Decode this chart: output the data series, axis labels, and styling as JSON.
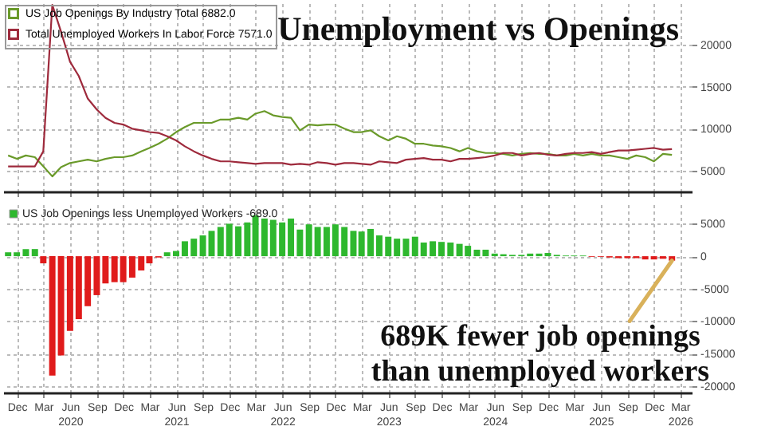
{
  "chart_data": [
    {
      "type": "line",
      "title": "Unemployment vs Openings",
      "x": [
        "2019-11",
        "2019-12",
        "2020-01",
        "2020-02",
        "2020-03",
        "2020-04",
        "2020-05",
        "2020-06",
        "2020-07",
        "2020-08",
        "2020-09",
        "2020-10",
        "2020-11",
        "2020-12",
        "2021-01",
        "2021-02",
        "2021-03",
        "2021-04",
        "2021-05",
        "2021-06",
        "2021-07",
        "2021-08",
        "2021-09",
        "2021-10",
        "2021-11",
        "2021-12",
        "2022-01",
        "2022-02",
        "2022-03",
        "2022-04",
        "2022-05",
        "2022-06",
        "2022-07",
        "2022-08",
        "2022-09",
        "2022-10",
        "2022-11",
        "2022-12",
        "2023-01",
        "2023-02",
        "2023-03",
        "2023-04",
        "2023-05",
        "2023-06",
        "2023-07",
        "2023-08",
        "2023-09",
        "2023-10",
        "2023-11",
        "2023-12",
        "2024-01",
        "2024-02",
        "2024-03",
        "2024-04",
        "2024-05",
        "2024-06",
        "2024-07",
        "2024-08",
        "2024-09",
        "2024-10",
        "2024-11",
        "2024-12",
        "2025-01",
        "2025-02",
        "2025-03",
        "2025-04",
        "2025-05",
        "2025-06",
        "2025-07",
        "2025-08",
        "2025-09",
        "2025-10",
        "2025-11",
        "2025-12",
        "2026-01",
        "2026-02"
      ],
      "series": [
        {
          "name": "US Job Openings By Industry Total 6882.0",
          "color": "#6a9a2a",
          "values": [
            6800,
            6400,
            6800,
            6600,
            5500,
            4300,
            5400,
            5900,
            6100,
            6300,
            6100,
            6400,
            6600,
            6600,
            6800,
            7300,
            7700,
            8200,
            8800,
            9600,
            10200,
            10700,
            10700,
            10700,
            11100,
            11100,
            11300,
            11100,
            11800,
            12100,
            11600,
            11400,
            11300,
            9800,
            10500,
            10400,
            10500,
            10500,
            10000,
            9600,
            9600,
            9800,
            9100,
            8600,
            9100,
            8800,
            8200,
            8200,
            8000,
            7900,
            7700,
            7300,
            7700,
            7300,
            7100,
            7100,
            7000,
            6800,
            7000,
            7100,
            7000,
            7000,
            6800,
            6800,
            7000,
            6800,
            7000,
            6800,
            6800,
            6600,
            6400,
            6800,
            6600,
            6100,
            7000,
            6882
          ]
        },
        {
          "name": "Total Unemployed Workers In Labor Force 7571.0",
          "color": "#9e2a3c",
          "values": [
            5500,
            5500,
            5500,
            5500,
            7300,
            24800,
            21600,
            18000,
            16300,
            13600,
            12300,
            11300,
            10700,
            10500,
            10000,
            9800,
            9600,
            9500,
            9100,
            8600,
            7900,
            7300,
            6800,
            6400,
            6100,
            6100,
            6000,
            5900,
            5800,
            5900,
            5900,
            5900,
            5700,
            5800,
            5700,
            6000,
            5900,
            5700,
            5900,
            5900,
            5800,
            5700,
            6100,
            6000,
            5900,
            6300,
            6400,
            6500,
            6300,
            6300,
            6100,
            6400,
            6400,
            6500,
            6600,
            6800,
            7100,
            7100,
            6800,
            7000,
            7100,
            6900,
            6800,
            7000,
            7100,
            7100,
            7200,
            7000,
            7200,
            7400,
            7400,
            7500,
            7600,
            7700,
            7500,
            7571
          ]
        }
      ],
      "xlim": [
        "2019-10-15",
        "2026-04-10"
      ],
      "xticks": [
        {
          "value": "2019-12",
          "label": null
        },
        {
          "value": "2020-03",
          "label": null
        },
        {
          "value": "2020-06",
          "label": null
        },
        {
          "value": "2020-09",
          "label": null
        },
        {
          "value": "2020-12",
          "label": null
        },
        {
          "value": "2021-03",
          "label": null
        },
        {
          "value": "2021-06",
          "label": null
        },
        {
          "value": "2021-09",
          "label": null
        },
        {
          "value": "2021-12",
          "label": null
        },
        {
          "value": "2022-03",
          "label": null
        },
        {
          "value": "2022-06",
          "label": null
        },
        {
          "value": "2022-09",
          "label": null
        },
        {
          "value": "2022-12",
          "label": null
        },
        {
          "value": "2023-03",
          "label": null
        },
        {
          "value": "2023-06",
          "label": null
        },
        {
          "value": "2023-09",
          "label": null
        },
        {
          "value": "2023-12",
          "label": null
        },
        {
          "value": "2024-03",
          "label": null
        },
        {
          "value": "2024-06",
          "label": null
        },
        {
          "value": "2024-09",
          "label": null
        },
        {
          "value": "2024-12",
          "label": null
        },
        {
          "value": "2025-03",
          "label": null
        },
        {
          "value": "2025-06",
          "label": null
        },
        {
          "value": "2025-09",
          "label": null
        },
        {
          "value": "2025-12",
          "label": null
        },
        {
          "value": "2026-03",
          "label": null
        }
      ],
      "ylim": [
        2500,
        25000
      ],
      "yticks": [
        5000,
        10000,
        15000,
        20000
      ],
      "grid": true,
      "legend": "top left",
      "tick_labels": "y"
    },
    {
      "type": "bar",
      "x": [
        "2019-11",
        "2019-12",
        "2020-01",
        "2020-02",
        "2020-03",
        "2020-04",
        "2020-05",
        "2020-06",
        "2020-07",
        "2020-08",
        "2020-09",
        "2020-10",
        "2020-11",
        "2020-12",
        "2021-01",
        "2021-02",
        "2021-03",
        "2021-04",
        "2021-05",
        "2021-06",
        "2021-07",
        "2021-08",
        "2021-09",
        "2021-10",
        "2021-11",
        "2021-12",
        "2022-01",
        "2022-02",
        "2022-03",
        "2022-04",
        "2022-05",
        "2022-06",
        "2022-07",
        "2022-08",
        "2022-09",
        "2022-10",
        "2022-11",
        "2022-12",
        "2023-01",
        "2023-02",
        "2023-03",
        "2023-04",
        "2023-05",
        "2023-06",
        "2023-07",
        "2023-08",
        "2023-09",
        "2023-10",
        "2023-11",
        "2023-12",
        "2024-01",
        "2024-02",
        "2024-03",
        "2024-04",
        "2024-05",
        "2024-06",
        "2024-07",
        "2024-08",
        "2024-09",
        "2024-10",
        "2024-11",
        "2024-12",
        "2025-01",
        "2025-02",
        "2025-03",
        "2025-04",
        "2025-05",
        "2025-06",
        "2025-07",
        "2025-08",
        "2025-09",
        "2025-10",
        "2025-11",
        "2025-12",
        "2026-01",
        "2026-02"
      ],
      "series": [
        {
          "name": "US Job Openings less Unemployed Workers -689.0",
          "color": "#2eb82e",
          "values": [
            600,
            600,
            1100,
            1100,
            -1100,
            -18400,
            -15300,
            -11500,
            -9700,
            -7700,
            -6000,
            -4200,
            -4000,
            -4000,
            -3300,
            -2200,
            -1100,
            -200,
            600,
            800,
            2300,
            2700,
            3200,
            3900,
            4500,
            5000,
            4600,
            5200,
            6300,
            5800,
            5600,
            5200,
            5800,
            4100,
            4900,
            4500,
            4500,
            4900,
            4500,
            3900,
            3800,
            4200,
            3200,
            3000,
            2700,
            2700,
            3000,
            2100,
            2300,
            2200,
            2100,
            1900,
            1600,
            1000,
            1000,
            400,
            300,
            200,
            200,
            400,
            400,
            500,
            200,
            100,
            100,
            100,
            -100,
            -100,
            -200,
            -300,
            -300,
            -300,
            -500,
            -500,
            -400,
            -689
          ],
          "colors": [
            "#2eb82e",
            "#2eb82e",
            "#2eb82e",
            "#2eb82e",
            "#e01b1b",
            "#e01b1b",
            "#e01b1b",
            "#e01b1b",
            "#e01b1b",
            "#e01b1b",
            "#e01b1b",
            "#e01b1b",
            "#e01b1b",
            "#e01b1b",
            "#e01b1b",
            "#e01b1b",
            "#e01b1b",
            "#e01b1b",
            "#2eb82e",
            "#2eb82e",
            "#2eb82e",
            "#2eb82e",
            "#2eb82e",
            "#2eb82e",
            "#2eb82e",
            "#2eb82e",
            "#2eb82e",
            "#2eb82e",
            "#2eb82e",
            "#2eb82e",
            "#2eb82e",
            "#2eb82e",
            "#2eb82e",
            "#2eb82e",
            "#2eb82e",
            "#2eb82e",
            "#2eb82e",
            "#2eb82e",
            "#2eb82e",
            "#2eb82e",
            "#2eb82e",
            "#2eb82e",
            "#2eb82e",
            "#2eb82e",
            "#2eb82e",
            "#2eb82e",
            "#2eb82e",
            "#2eb82e",
            "#2eb82e",
            "#2eb82e",
            "#2eb82e",
            "#2eb82e",
            "#2eb82e",
            "#2eb82e",
            "#2eb82e",
            "#2eb82e",
            "#2eb82e",
            "#2eb82e",
            "#2eb82e",
            "#2eb82e",
            "#2eb82e",
            "#2eb82e",
            "#2eb82e",
            "#2eb82e",
            "#2eb82e",
            "#2eb82e",
            "#e01b1b",
            "#e01b1b",
            "#e01b1b",
            "#e01b1b",
            "#e01b1b",
            "#e01b1b",
            "#e01b1b",
            "#e01b1b",
            "#e01b1b",
            "#e01b1b"
          ]
        }
      ],
      "xlim": [
        "2019-10-15",
        "2026-04-10"
      ],
      "xticks": [
        {
          "value": "2019-12",
          "label": "Dec"
        },
        {
          "value": "2020-03",
          "label": "Mar"
        },
        {
          "value": "2020-06",
          "label": "Jun\n2020"
        },
        {
          "value": "2020-09",
          "label": "Sep"
        },
        {
          "value": "2020-12",
          "label": "Dec"
        },
        {
          "value": "2021-03",
          "label": "Mar"
        },
        {
          "value": "2021-06",
          "label": "Jun\n2021"
        },
        {
          "value": "2021-09",
          "label": "Sep"
        },
        {
          "value": "2021-12",
          "label": "Dec"
        },
        {
          "value": "2022-03",
          "label": "Mar"
        },
        {
          "value": "2022-06",
          "label": "Jun\n2022"
        },
        {
          "value": "2022-09",
          "label": "Sep"
        },
        {
          "value": "2022-12",
          "label": "Dec"
        },
        {
          "value": "2023-03",
          "label": "Mar"
        },
        {
          "value": "2023-06",
          "label": "Jun\n2023"
        },
        {
          "value": "2023-09",
          "label": "Sep"
        },
        {
          "value": "2023-12",
          "label": "Dec"
        },
        {
          "value": "2024-03",
          "label": "Mar"
        },
        {
          "value": "2024-06",
          "label": "Jun\n2024"
        },
        {
          "value": "2024-09",
          "label": "Sep"
        },
        {
          "value": "2024-12",
          "label": "Dec"
        },
        {
          "value": "2025-03",
          "label": "Mar"
        },
        {
          "value": "2025-06",
          "label": "Jun\n2025"
        },
        {
          "value": "2025-09",
          "label": "Sep"
        },
        {
          "value": "2025-12",
          "label": "Dec"
        },
        {
          "value": "2026-03",
          "label": "Mar\n2026"
        }
      ],
      "ylim": [
        -21000,
        8000
      ],
      "yticks": [
        5000,
        0,
        -5000,
        -10000,
        -15000,
        -20000
      ],
      "grid": true,
      "legend": "top left",
      "annotations": [
        {
          "text": "689K fewer job openings\nthan unemployed workers",
          "x": "2026-02",
          "y": -689
        }
      ]
    }
  ]
}
